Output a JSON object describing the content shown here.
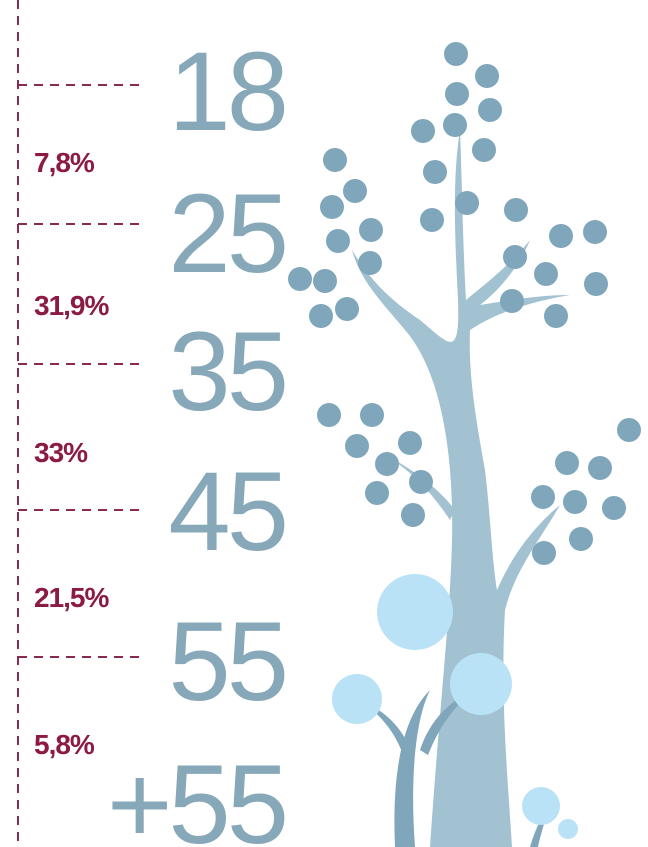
{
  "ages": [
    "18",
    "25",
    "35",
    "45",
    "55",
    "+55"
  ],
  "shares": [
    "7,8%",
    "31,9%",
    "33%",
    "21,5%",
    "5,8%"
  ]
}
